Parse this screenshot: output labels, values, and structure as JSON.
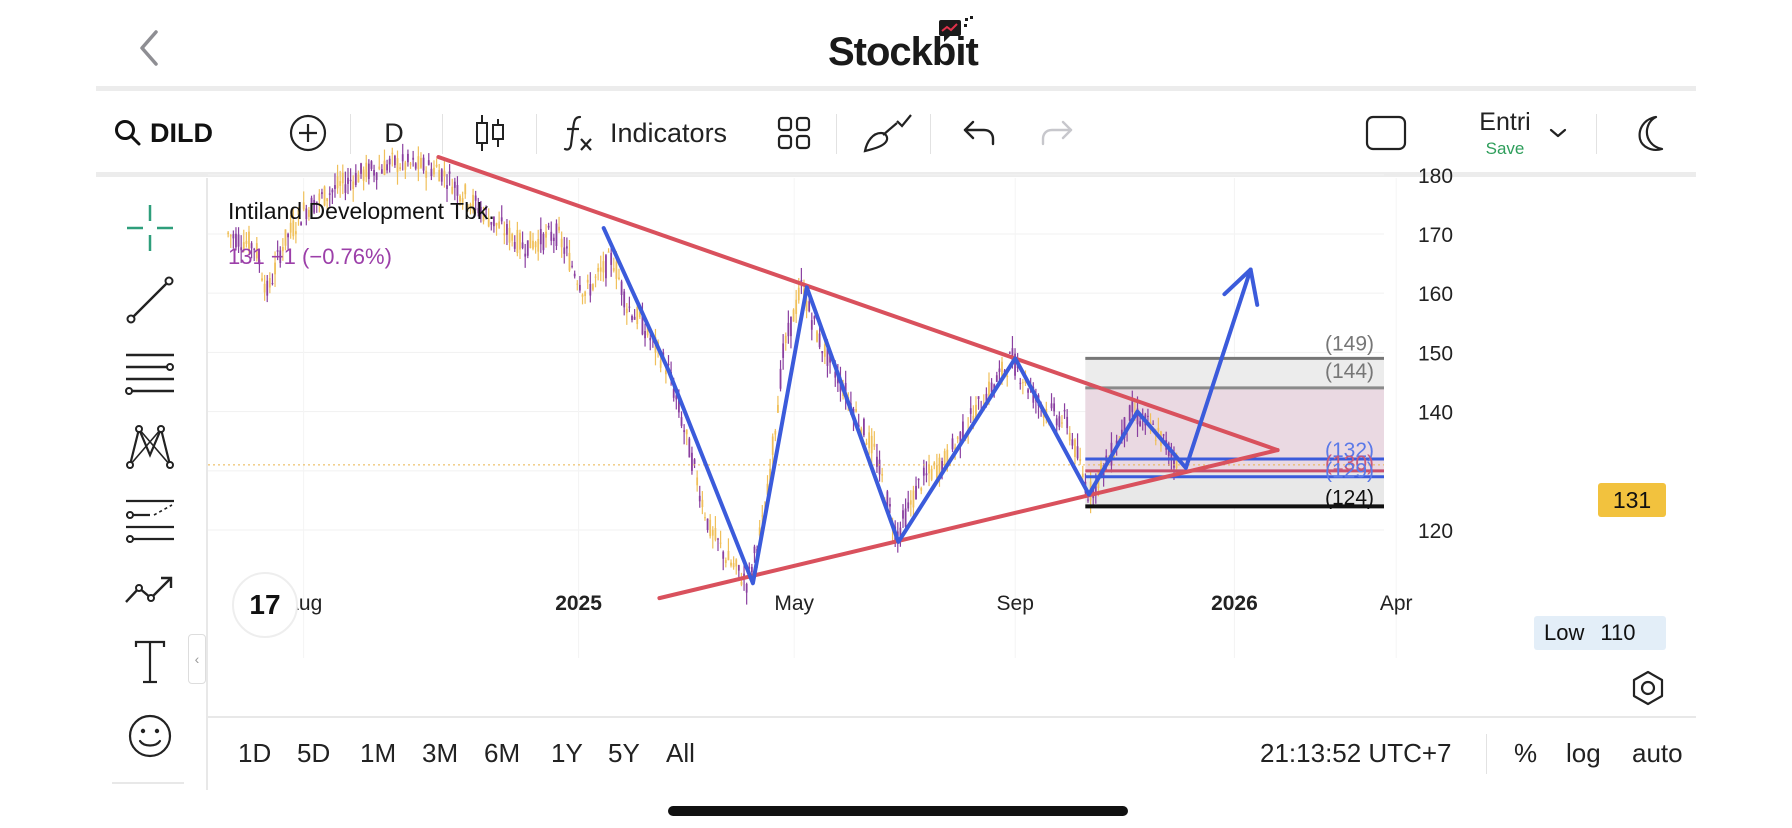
{
  "header": {
    "logo_text": "Stockbit"
  },
  "toolbar": {
    "symbol": "DILD",
    "interval": "D",
    "indicators_label": "Indicators",
    "layout_name": "Entri",
    "save_label": "Save"
  },
  "chart": {
    "company_name": "Intiland Development Tbk.",
    "quote": "131 −1 (−0.76%)",
    "last_price_tag": "131",
    "low_label": "Low",
    "low_value": "110",
    "y_ticks": [
      "180",
      "170",
      "160",
      "150",
      "140",
      "120"
    ],
    "x_ticks": [
      {
        "label": "Aug",
        "bold": false
      },
      {
        "label": "2025",
        "bold": true
      },
      {
        "label": "May",
        "bold": false
      },
      {
        "label": "Sep",
        "bold": false
      },
      {
        "label": "2026",
        "bold": true
      },
      {
        "label": "Apr",
        "bold": false
      }
    ],
    "level_labels": [
      {
        "text": "(149)",
        "color": "#777777"
      },
      {
        "text": "(144)",
        "color": "#777777"
      },
      {
        "text": "(132)",
        "color": "#5b79e8"
      },
      {
        "text": "(130)",
        "color": "#c85a7a"
      },
      {
        "text": "(129)",
        "color": "#5b79e8"
      },
      {
        "text": "(124)",
        "color": "#111111"
      }
    ]
  },
  "chart_data": {
    "type": "candlestick",
    "symbol": "DILD",
    "interval": "D",
    "ylim": [
      107,
      183
    ],
    "y_ticks": [
      120,
      140,
      150,
      160,
      170,
      180
    ],
    "last_price": 131,
    "change": -1,
    "change_pct": -0.76,
    "low": 110,
    "close_path": [
      {
        "t": "2024-06-20",
        "v": 170
      },
      {
        "t": "2024-07-05",
        "v": 168
      },
      {
        "t": "2024-07-12",
        "v": 160
      },
      {
        "t": "2024-07-20",
        "v": 168
      },
      {
        "t": "2024-08-01",
        "v": 174
      },
      {
        "t": "2024-08-15",
        "v": 177
      },
      {
        "t": "2024-09-01",
        "v": 180
      },
      {
        "t": "2024-09-20",
        "v": 182
      },
      {
        "t": "2024-10-15",
        "v": 181
      },
      {
        "t": "2024-11-01",
        "v": 176
      },
      {
        "t": "2024-11-15",
        "v": 172
      },
      {
        "t": "2024-12-01",
        "v": 168
      },
      {
        "t": "2024-12-20",
        "v": 170
      },
      {
        "t": "2025-01-05",
        "v": 160
      },
      {
        "t": "2025-01-20",
        "v": 166
      },
      {
        "t": "2025-01-28",
        "v": 158
      },
      {
        "t": "2025-02-05",
        "v": 155
      },
      {
        "t": "2025-02-20",
        "v": 147
      },
      {
        "t": "2025-03-05",
        "v": 132
      },
      {
        "t": "2025-03-15",
        "v": 120
      },
      {
        "t": "2025-03-25",
        "v": 115
      },
      {
        "t": "2025-04-05",
        "v": 111
      },
      {
        "t": "2025-04-15",
        "v": 123
      },
      {
        "t": "2025-04-25",
        "v": 150
      },
      {
        "t": "2025-05-05",
        "v": 161
      },
      {
        "t": "2025-05-15",
        "v": 152
      },
      {
        "t": "2025-05-30",
        "v": 143
      },
      {
        "t": "2025-06-15",
        "v": 133
      },
      {
        "t": "2025-06-27",
        "v": 119
      },
      {
        "t": "2025-07-10",
        "v": 128
      },
      {
        "t": "2025-07-25",
        "v": 132
      },
      {
        "t": "2025-08-10",
        "v": 140
      },
      {
        "t": "2025-08-30",
        "v": 149
      },
      {
        "t": "2025-09-15",
        "v": 141
      },
      {
        "t": "2025-09-30",
        "v": 138
      },
      {
        "t": "2025-10-12",
        "v": 126
      },
      {
        "t": "2025-10-25",
        "v": 133
      },
      {
        "t": "2025-11-05",
        "v": 140
      },
      {
        "t": "2025-11-20",
        "v": 136
      },
      {
        "t": "2025-12-01",
        "v": 131
      }
    ],
    "drawings": {
      "descending_trendline": [
        {
          "t": "2024-10-15",
          "v": 183
        },
        {
          "t": "2026-01-25",
          "v": 133.5
        }
      ],
      "ascending_trendline": [
        {
          "t": "2025-02-15",
          "v": 108.5
        },
        {
          "t": "2026-01-25",
          "v": 133.5
        }
      ],
      "zigzag": [
        {
          "t": "2025-01-15",
          "v": 171
        },
        {
          "t": "2025-02-20",
          "v": 147
        },
        {
          "t": "2025-04-08",
          "v": 111
        },
        {
          "t": "2025-05-08",
          "v": 161
        },
        {
          "t": "2025-06-28",
          "v": 118
        },
        {
          "t": "2025-09-01",
          "v": 149
        },
        {
          "t": "2025-10-12",
          "v": 126
        },
        {
          "t": "2025-11-08",
          "v": 140
        },
        {
          "t": "2025-12-05",
          "v": 130.5
        },
        {
          "t": "2026-01-10",
          "v": 164
        }
      ],
      "levels": [
        149,
        144,
        132,
        130,
        129,
        124
      ]
    }
  },
  "bottom": {
    "ranges": [
      "1D",
      "5D",
      "1M",
      "3M",
      "6M",
      "1Y",
      "5Y",
      "All"
    ],
    "time": "21:13:52 UTC+7",
    "options": [
      "%",
      "log",
      "auto"
    ]
  }
}
